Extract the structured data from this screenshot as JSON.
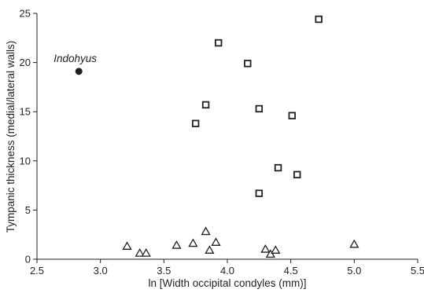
{
  "chart_data": {
    "type": "scatter",
    "title": "",
    "xlabel": "ln [Width occipital condyles (mm)]",
    "ylabel": "Tympanic thickness (medial/lateral walls)",
    "xlim": [
      2.5,
      5.5
    ],
    "ylim": [
      0,
      25
    ],
    "xticks": [
      "2.5",
      "3.0",
      "3.5",
      "4.0",
      "4.5",
      "5.0",
      "5.5"
    ],
    "yticks": [
      "0",
      "5",
      "10",
      "15",
      "20",
      "25"
    ],
    "grid": false,
    "legend": "none",
    "series": [
      {
        "marker": "circle",
        "color": "#231f20",
        "points": [
          {
            "x": 2.83,
            "y": 19.1
          }
        ]
      },
      {
        "marker": "square",
        "color": "#231f20",
        "points": [
          {
            "x": 3.75,
            "y": 13.8
          },
          {
            "x": 3.83,
            "y": 15.7
          },
          {
            "x": 3.93,
            "y": 22.0
          },
          {
            "x": 4.16,
            "y": 19.9
          },
          {
            "x": 4.25,
            "y": 15.3
          },
          {
            "x": 4.25,
            "y": 6.7
          },
          {
            "x": 4.4,
            "y": 9.3
          },
          {
            "x": 4.51,
            "y": 14.6
          },
          {
            "x": 4.55,
            "y": 8.6
          },
          {
            "x": 4.72,
            "y": 24.4
          }
        ]
      },
      {
        "marker": "triangle",
        "color": "#231f20",
        "points": [
          {
            "x": 3.21,
            "y": 1.3
          },
          {
            "x": 3.31,
            "y": 0.6
          },
          {
            "x": 3.36,
            "y": 0.6
          },
          {
            "x": 3.6,
            "y": 1.4
          },
          {
            "x": 3.73,
            "y": 1.6
          },
          {
            "x": 3.83,
            "y": 2.8
          },
          {
            "x": 3.86,
            "y": 0.9
          },
          {
            "x": 3.91,
            "y": 1.7
          },
          {
            "x": 4.3,
            "y": 1.0
          },
          {
            "x": 4.34,
            "y": 0.5
          },
          {
            "x": 4.38,
            "y": 0.9
          },
          {
            "x": 5.0,
            "y": 1.5
          }
        ]
      }
    ],
    "annotations": [
      {
        "text": "Indohyus",
        "x": 2.83,
        "y": 19.1
      }
    ]
  }
}
